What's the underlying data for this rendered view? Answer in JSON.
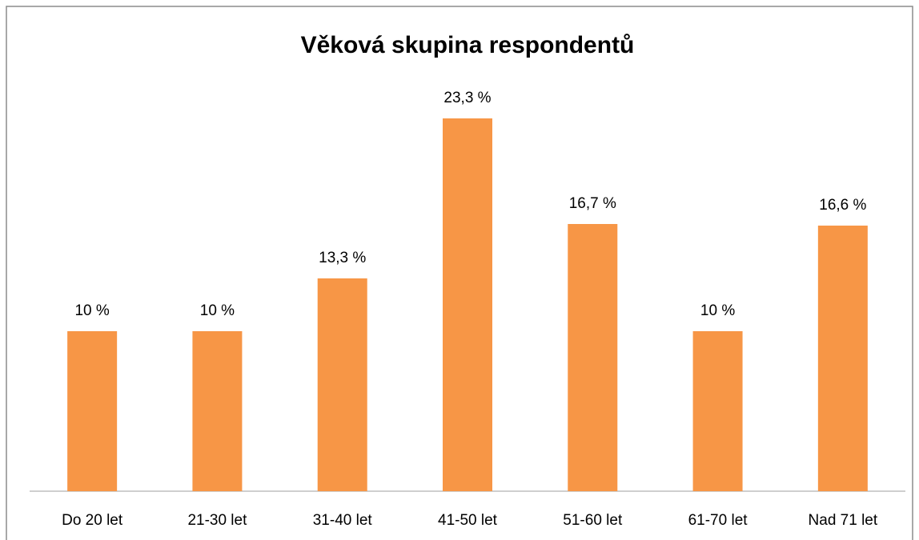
{
  "chart_data": {
    "type": "bar",
    "title": "Věková skupina respondentů",
    "categories": [
      "Do 20 let",
      "21-30 let",
      "31-40 let",
      "41-50 let",
      "51-60 let",
      "61-70 let",
      "Nad 71 let"
    ],
    "values": [
      10,
      10,
      13.3,
      23.3,
      16.7,
      10,
      16.6
    ],
    "value_labels": [
      "10 %",
      "10 %",
      "13,3 %",
      "23,3 %",
      "16,7 %",
      "10 %",
      "16,6 %"
    ],
    "color": "#f79646"
  }
}
